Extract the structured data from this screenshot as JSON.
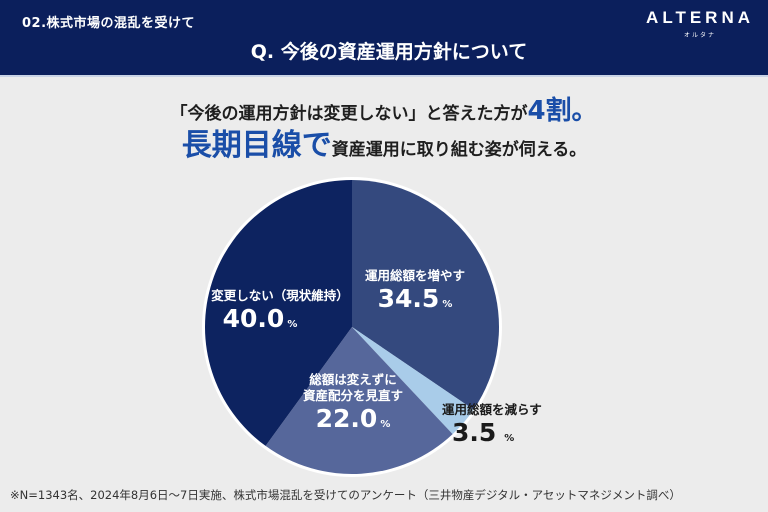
{
  "header": {
    "section_label": "02.株式市場の混乱を受けて",
    "question_title": "Q. 今後の資産運用方針について",
    "logo": {
      "main": "ALTERNA",
      "sub": "オルタナ"
    }
  },
  "headline": {
    "line1_text": "「今後の運用方針は変更しない」と答えた方が",
    "line1_accent": "4割。",
    "line2_accent": "長期目線で",
    "line2_text": "資産運用に取り組む姿が伺える。"
  },
  "colors": {
    "header_bg": "#0b1f5c",
    "accent_blue": "#1a4ea8",
    "slice_no_change": "#0d2360",
    "slice_increase": "#34497e",
    "slice_decrease": "#a9cce9",
    "slice_rebalance": "#56679b"
  },
  "chart_data": {
    "type": "pie",
    "title": "Q. 今後の資産運用方針について",
    "start_angle": "12 o'clock",
    "direction": "clockwise",
    "slices": [
      {
        "label": "運用総額を増やす",
        "value": 34.5,
        "color": "#34497e"
      },
      {
        "label": "運用総額を減らす",
        "value": 3.5,
        "color": "#a9cce9"
      },
      {
        "label": "総額は変えずに資産配分を見直す",
        "value": 22.0,
        "color": "#56679b"
      },
      {
        "label": "変更しない（現状維持）",
        "value": 40.0,
        "color": "#0d2360"
      }
    ],
    "unit": "%"
  },
  "labels": {
    "increase": {
      "name": "運用総額を増やす",
      "value": "34.5",
      "pct": "%"
    },
    "decrease": {
      "name": "運用総額を減らす",
      "value": "3.5",
      "pct": "%"
    },
    "rebalance": {
      "name_line1": "総額は変えずに",
      "name_line2": "資産配分を見直す",
      "value": "22.0",
      "pct": "%"
    },
    "no_change": {
      "name": "変更しない（現状維持）",
      "value": "40.0",
      "pct": "%"
    }
  },
  "footnote": "※N=1343名、2024年8月6日〜7日実施、株式市場混乱を受けてのアンケート（三井物産デジタル・アセットマネジメント調べ）"
}
